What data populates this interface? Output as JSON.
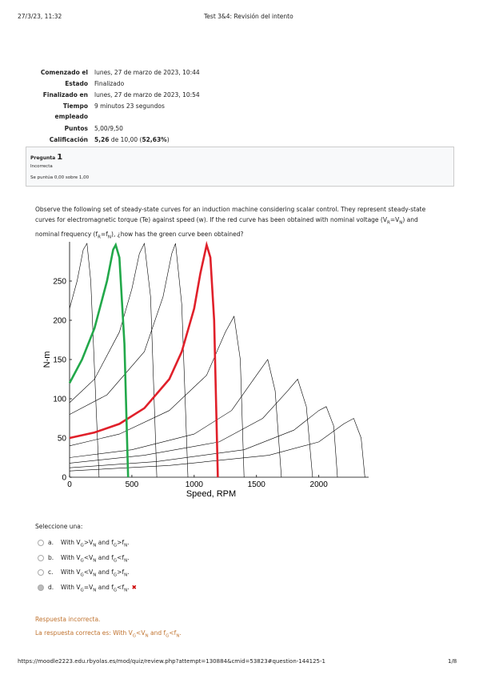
{
  "header": {
    "datetime": "27/3/23, 11:32",
    "title": "Test 3&4: Revisión del intento"
  },
  "summary": [
    {
      "label": "Comenzado el",
      "value": [
        "lunes, 27 de marzo de 2023, 10:44"
      ]
    },
    {
      "label": "Estado",
      "value": [
        "Finalizado"
      ]
    },
    {
      "label": "Finalizado en",
      "value": [
        "lunes, 27 de marzo de 2023, 10:54"
      ]
    },
    {
      "label": "Tiempo empleado",
      "value": [
        "9 minutos 23 segundos"
      ]
    },
    {
      "label": "Puntos",
      "value": [
        "5,00/9,50"
      ]
    },
    {
      "label": "Calificación",
      "value": [
        {
          "b": "5,26"
        },
        " de 10,00 (",
        {
          "b": "52,63%"
        },
        ")"
      ]
    }
  ],
  "info": {
    "label": "Pregunta",
    "number": "1",
    "state": "Incorrecta",
    "grade": "Se puntúa 0,00 sobre 1,00"
  },
  "question": [
    "Observe the following set of steady-state curves for an induction machine considering scalar control. They represent steady-state curves for electromagnetic torque (Te) against speed (w). If the red curve has been obtained with nominal voltage (V",
    {
      "sub": "R"
    },
    "=V",
    {
      "sub": "N"
    },
    ")  and nominal frequency (f",
    {
      "sub": "R"
    },
    "=f",
    {
      "sub": "N"
    },
    "), ¿how has the green curve been obtained?"
  ],
  "chart_data": {
    "type": "line",
    "xlabel": "Speed, RPM",
    "ylabel": "N-m",
    "xlim": [
      0,
      2400
    ],
    "ylim": [
      0,
      300
    ],
    "xticks": [
      0,
      500,
      1000,
      1500,
      2000
    ],
    "yticks": [
      0,
      50,
      100,
      150,
      200,
      250
    ],
    "series": [
      {
        "color": "#000000",
        "x": [
          0,
          60,
          110,
          140,
          170,
          237
        ],
        "values": [
          215,
          250,
          290,
          298,
          250,
          0
        ]
      },
      {
        "color": "#000000",
        "x": [
          0,
          200,
          400,
          500,
          560,
          600,
          650,
          700
        ],
        "values": [
          95,
          125,
          185,
          240,
          285,
          298,
          230,
          0
        ]
      },
      {
        "color": "#000000",
        "x": [
          0,
          300,
          600,
          750,
          820,
          850,
          900,
          950
        ],
        "values": [
          80,
          105,
          160,
          230,
          285,
          298,
          220,
          0
        ]
      },
      {
        "color": "#000000",
        "x": [
          0,
          400,
          800,
          1100,
          1250,
          1320,
          1370,
          1400
        ],
        "values": [
          40,
          55,
          85,
          130,
          185,
          205,
          150,
          0
        ]
      },
      {
        "color": "#000000",
        "x": [
          0,
          500,
          1000,
          1300,
          1500,
          1590,
          1650,
          1700
        ],
        "values": [
          25,
          35,
          55,
          85,
          130,
          150,
          110,
          0
        ]
      },
      {
        "color": "#000000",
        "x": [
          0,
          600,
          1200,
          1550,
          1750,
          1830,
          1900,
          1950
        ],
        "values": [
          18,
          28,
          45,
          75,
          110,
          125,
          90,
          0
        ]
      },
      {
        "color": "#000000",
        "x": [
          0,
          700,
          1400,
          1800,
          2000,
          2060,
          2120,
          2150
        ],
        "values": [
          12,
          20,
          35,
          60,
          85,
          90,
          65,
          0
        ]
      },
      {
        "color": "#000000",
        "x": [
          0,
          800,
          1600,
          2000,
          2200,
          2280,
          2340,
          2370
        ],
        "values": [
          8,
          15,
          28,
          45,
          68,
          75,
          50,
          0
        ]
      },
      {
        "color": "#e0202a",
        "x": [
          0,
          200,
          400,
          600,
          800,
          900,
          1000,
          1050,
          1100,
          1130,
          1160,
          1190
        ],
        "values": [
          50,
          57,
          68,
          88,
          125,
          160,
          215,
          260,
          296,
          280,
          200,
          0
        ]
      },
      {
        "color": "#22a84a",
        "x": [
          0,
          100,
          200,
          300,
          350,
          370,
          400,
          440,
          470
        ],
        "values": [
          120,
          150,
          190,
          250,
          290,
          296,
          280,
          170,
          0
        ]
      }
    ]
  },
  "prompt": "Seleccione una:",
  "options": [
    {
      "letter": "a.",
      "text": [
        "With V",
        {
          "sub": "G"
        },
        ">V",
        {
          "sub": "N"
        },
        " and f",
        {
          "sub": "G"
        },
        ">f",
        {
          "sub": "N"
        },
        "."
      ]
    },
    {
      "letter": "b.",
      "text": [
        "With V",
        {
          "sub": "G"
        },
        "<V",
        {
          "sub": "N"
        },
        " and f",
        {
          "sub": "G"
        },
        "<f",
        {
          "sub": "N"
        },
        "."
      ]
    },
    {
      "letter": "c.",
      "text": [
        "With V",
        {
          "sub": "G"
        },
        "<V",
        {
          "sub": "N"
        },
        " and f",
        {
          "sub": "G"
        },
        ">f",
        {
          "sub": "N"
        },
        "."
      ]
    },
    {
      "letter": "d.",
      "text": [
        "With V",
        {
          "sub": "G"
        },
        "=V",
        {
          "sub": "N"
        },
        " and f",
        {
          "sub": "G"
        },
        "<f",
        {
          "sub": "N"
        },
        "."
      ],
      "selected": true,
      "mark": "✖"
    }
  ],
  "feedback": {
    "result": "Respuesta incorrecta.",
    "correct": [
      "La respuesta correcta es: With V",
      {
        "sub": "G"
      },
      "<V",
      {
        "sub": "N"
      },
      " and f",
      {
        "sub": "G"
      },
      "<f",
      {
        "sub": "N"
      },
      "."
    ]
  },
  "footer": {
    "url": "https://moodle2223.edu.rbyolas.es/mod/quiz/review.php?attempt=130884&cmid=53823#question-144125-1",
    "page": "1/8"
  }
}
